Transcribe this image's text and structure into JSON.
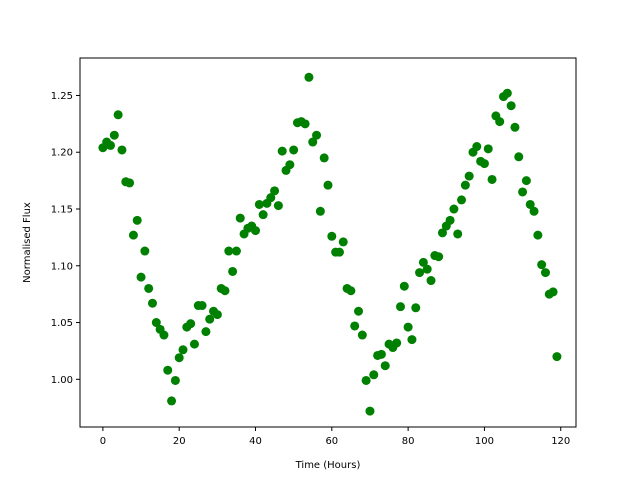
{
  "chart_data": {
    "type": "scatter",
    "title": "",
    "xlabel": "Time (Hours)",
    "ylabel": "Normalised Flux",
    "xlim": [
      -6,
      124
    ],
    "ylim": [
      0.958,
      1.283
    ],
    "xticks": [
      0,
      20,
      40,
      60,
      80,
      100,
      120
    ],
    "yticks": [
      1.0,
      1.05,
      1.1,
      1.15,
      1.2,
      1.25
    ],
    "xtick_labels": [
      "0",
      "20",
      "40",
      "60",
      "80",
      "100",
      "120"
    ],
    "ytick_labels": [
      "1.00",
      "1.05",
      "1.10",
      "1.15",
      "1.20",
      "1.25"
    ],
    "grid": false,
    "series": [
      {
        "color": "#008000",
        "marker": "circle",
        "points": [
          [
            0,
            1.204
          ],
          [
            1,
            1.209
          ],
          [
            2,
            1.206
          ],
          [
            3,
            1.215
          ],
          [
            4,
            1.233
          ],
          [
            5,
            1.202
          ],
          [
            6,
            1.174
          ],
          [
            7,
            1.173
          ],
          [
            8,
            1.127
          ],
          [
            9,
            1.14
          ],
          [
            10,
            1.09
          ],
          [
            11,
            1.113
          ],
          [
            12,
            1.08
          ],
          [
            13,
            1.067
          ],
          [
            14,
            1.05
          ],
          [
            15,
            1.044
          ],
          [
            16,
            1.039
          ],
          [
            17,
            1.008
          ],
          [
            18,
            0.981
          ],
          [
            19,
            0.999
          ],
          [
            20,
            1.019
          ],
          [
            21,
            1.026
          ],
          [
            22,
            1.046
          ],
          [
            23,
            1.049
          ],
          [
            24,
            1.031
          ],
          [
            25,
            1.065
          ],
          [
            26,
            1.065
          ],
          [
            27,
            1.042
          ],
          [
            28,
            1.053
          ],
          [
            29,
            1.06
          ],
          [
            30,
            1.057
          ],
          [
            31,
            1.08
          ],
          [
            32,
            1.078
          ],
          [
            33,
            1.113
          ],
          [
            34,
            1.095
          ],
          [
            35,
            1.113
          ],
          [
            36,
            1.142
          ],
          [
            37,
            1.128
          ],
          [
            38,
            1.133
          ],
          [
            39,
            1.135
          ],
          [
            40,
            1.131
          ],
          [
            41,
            1.154
          ],
          [
            42,
            1.145
          ],
          [
            43,
            1.155
          ],
          [
            44,
            1.16
          ],
          [
            45,
            1.166
          ],
          [
            46,
            1.153
          ],
          [
            47,
            1.201
          ],
          [
            48,
            1.184
          ],
          [
            49,
            1.189
          ],
          [
            50,
            1.202
          ],
          [
            51,
            1.226
          ],
          [
            52,
            1.227
          ],
          [
            53,
            1.225
          ],
          [
            54,
            1.266
          ],
          [
            55,
            1.209
          ],
          [
            56,
            1.215
          ],
          [
            57,
            1.148
          ],
          [
            58,
            1.195
          ],
          [
            59,
            1.171
          ],
          [
            60,
            1.126
          ],
          [
            61,
            1.112
          ],
          [
            62,
            1.112
          ],
          [
            63,
            1.121
          ],
          [
            64,
            1.08
          ],
          [
            65,
            1.078
          ],
          [
            66,
            1.047
          ],
          [
            67,
            1.06
          ],
          [
            68,
            1.039
          ],
          [
            69,
            0.999
          ],
          [
            70,
            0.972
          ],
          [
            71,
            1.004
          ],
          [
            72,
            1.021
          ],
          [
            73,
            1.022
          ],
          [
            74,
            1.012
          ],
          [
            75,
            1.031
          ],
          [
            76,
            1.028
          ],
          [
            77,
            1.032
          ],
          [
            78,
            1.064
          ],
          [
            79,
            1.082
          ],
          [
            80,
            1.046
          ],
          [
            81,
            1.035
          ],
          [
            82,
            1.063
          ],
          [
            83,
            1.094
          ],
          [
            84,
            1.103
          ],
          [
            85,
            1.097
          ],
          [
            86,
            1.087
          ],
          [
            87,
            1.109
          ],
          [
            88,
            1.108
          ],
          [
            89,
            1.129
          ],
          [
            90,
            1.135
          ],
          [
            91,
            1.14
          ],
          [
            92,
            1.15
          ],
          [
            93,
            1.128
          ],
          [
            94,
            1.158
          ],
          [
            95,
            1.171
          ],
          [
            96,
            1.179
          ],
          [
            97,
            1.2
          ],
          [
            98,
            1.205
          ],
          [
            99,
            1.192
          ],
          [
            100,
            1.19
          ],
          [
            101,
            1.203
          ],
          [
            102,
            1.176
          ],
          [
            103,
            1.232
          ],
          [
            104,
            1.227
          ],
          [
            105,
            1.249
          ],
          [
            106,
            1.252
          ],
          [
            107,
            1.241
          ],
          [
            108,
            1.222
          ],
          [
            109,
            1.196
          ],
          [
            110,
            1.165
          ],
          [
            111,
            1.175
          ],
          [
            112,
            1.154
          ],
          [
            113,
            1.148
          ],
          [
            114,
            1.127
          ],
          [
            115,
            1.101
          ],
          [
            116,
            1.094
          ],
          [
            117,
            1.075
          ],
          [
            118,
            1.077
          ],
          [
            119,
            1.02
          ]
        ]
      }
    ]
  }
}
